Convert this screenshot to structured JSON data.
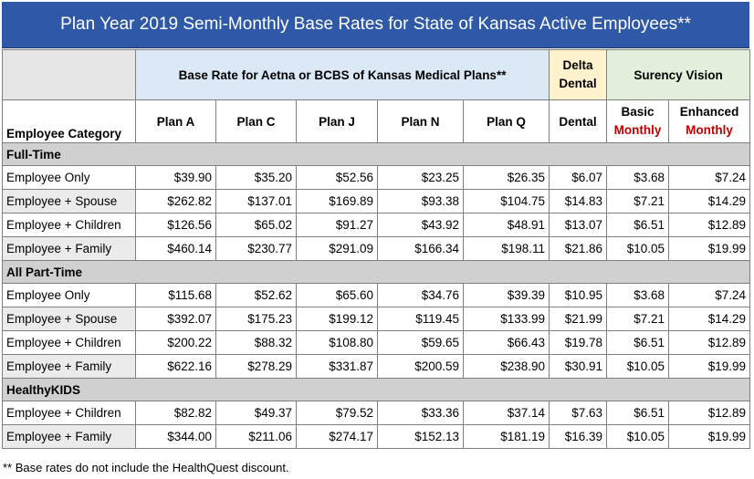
{
  "title": "Plan Year 2019 Semi-Monthly Base Rates for State of Kansas Active Employees**",
  "group_headers": {
    "medical": "Base Rate for Aetna or BCBS of Kansas Medical Plans**",
    "dental_line1": "Delta",
    "dental_line2": "Dental",
    "vision": "Surency Vision"
  },
  "column_headers": {
    "category": "Employee Category",
    "plan_a": "Plan A",
    "plan_c": "Plan C",
    "plan_j": "Plan J",
    "plan_n": "Plan N",
    "plan_q": "Plan Q",
    "dental": "Dental",
    "basic_line1": "Basic",
    "basic_line2": "Monthly",
    "enhanced_line1": "Enhanced",
    "enhanced_line2": "Monthly"
  },
  "sections": [
    {
      "name": "Full-Time",
      "rows": [
        {
          "category": "Employee Only",
          "values": [
            "$39.90",
            "$35.20",
            "$52.56",
            "$23.25",
            "$26.35",
            "$6.07",
            "$3.68",
            "$7.24"
          ]
        },
        {
          "category": "Employee + Spouse",
          "values": [
            "$262.82",
            "$137.01",
            "$169.89",
            "$93.38",
            "$104.75",
            "$14.83",
            "$7.21",
            "$14.29"
          ]
        },
        {
          "category": "Employee + Children",
          "values": [
            "$126.56",
            "$65.02",
            "$91.27",
            "$43.92",
            "$48.91",
            "$13.07",
            "$6.51",
            "$12.89"
          ]
        },
        {
          "category": "Employee + Family",
          "values": [
            "$460.14",
            "$230.77",
            "$291.09",
            "$166.34",
            "$198.11",
            "$21.86",
            "$10.05",
            "$19.99"
          ]
        }
      ]
    },
    {
      "name": "All Part-Time",
      "rows": [
        {
          "category": "Employee Only",
          "values": [
            "$115.68",
            "$52.62",
            "$65.60",
            "$34.76",
            "$39.39",
            "$10.95",
            "$3.68",
            "$7.24"
          ]
        },
        {
          "category": "Employee + Spouse",
          "values": [
            "$392.07",
            "$175.23",
            "$199.12",
            "$119.45",
            "$133.99",
            "$21.99",
            "$7.21",
            "$14.29"
          ]
        },
        {
          "category": "Employee + Children",
          "values": [
            "$200.22",
            "$88.32",
            "$108.80",
            "$59.65",
            "$66.43",
            "$19.78",
            "$6.51",
            "$12.89"
          ]
        },
        {
          "category": "Employee + Family",
          "values": [
            "$622.16",
            "$278.29",
            "$331.87",
            "$200.59",
            "$238.90",
            "$30.91",
            "$10.05",
            "$19.99"
          ]
        }
      ]
    },
    {
      "name": "HealthyKIDS",
      "rows": [
        {
          "category": "Employee + Children",
          "values": [
            "$82.82",
            "$49.37",
            "$79.52",
            "$33.36",
            "$37.14",
            "$7.63",
            "$6.51",
            "$12.89"
          ]
        },
        {
          "category": "Employee + Family",
          "values": [
            "$344.00",
            "$211.06",
            "$274.17",
            "$152.13",
            "$181.19",
            "$16.39",
            "$10.05",
            "$19.99"
          ]
        }
      ]
    }
  ],
  "footnote": "** Base rates do not include the HealthQuest discount."
}
